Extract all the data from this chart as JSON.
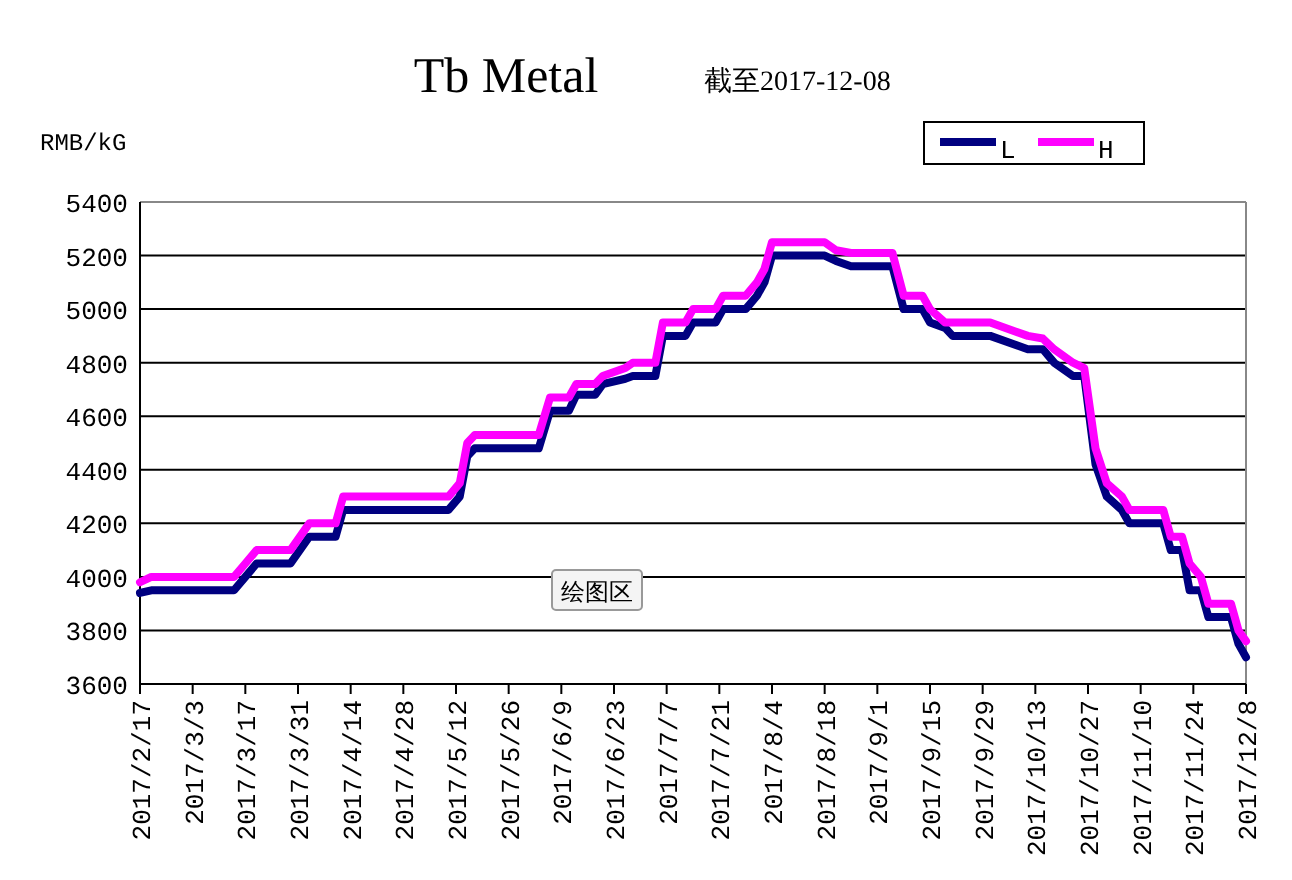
{
  "chart_data": {
    "type": "line",
    "title": "Tb Metal",
    "subtitle": "截至2017-12-08",
    "ylabel": "RMB/kG",
    "annotations": [
      "绘图区"
    ],
    "x": [
      "2017-02-17",
      "2017-02-20",
      "2017-03-14",
      "2017-03-17",
      "2017-03-20",
      "2017-03-29",
      "2017-04-03",
      "2017-04-10",
      "2017-04-12",
      "2017-05-10",
      "2017-05-13",
      "2017-05-15",
      "2017-05-17",
      "2017-06-03",
      "2017-06-06",
      "2017-06-11",
      "2017-06-13",
      "2017-06-18",
      "2017-06-20",
      "2017-06-26",
      "2017-06-28",
      "2017-07-04",
      "2017-07-06",
      "2017-07-12",
      "2017-07-14",
      "2017-07-20",
      "2017-07-22",
      "2017-07-28",
      "2017-07-31",
      "2017-08-02",
      "2017-08-04",
      "2017-08-18",
      "2017-08-21",
      "2017-08-25",
      "2017-09-05",
      "2017-09-08",
      "2017-09-13",
      "2017-09-15",
      "2017-09-19",
      "2017-09-21",
      "2017-10-01",
      "2017-10-11",
      "2017-10-15",
      "2017-10-18",
      "2017-10-23",
      "2017-10-26",
      "2017-10-29",
      "2017-11-01",
      "2017-11-05",
      "2017-11-07",
      "2017-11-16",
      "2017-11-18",
      "2017-11-21",
      "2017-11-23",
      "2017-11-26",
      "2017-11-28",
      "2017-12-04",
      "2017-12-06",
      "2017-12-08"
    ],
    "series": [
      {
        "name": "L",
        "color": "#000080",
        "values": [
          3940,
          3950,
          3950,
          4000,
          4050,
          4050,
          4150,
          4150,
          4250,
          4250,
          4300,
          4450,
          4480,
          4480,
          4620,
          4620,
          4680,
          4680,
          4720,
          4740,
          4750,
          4750,
          4900,
          4900,
          4950,
          4950,
          5000,
          5000,
          5050,
          5100,
          5200,
          5200,
          5180,
          5160,
          5160,
          5000,
          5000,
          4950,
          4930,
          4900,
          4900,
          4850,
          4850,
          4800,
          4750,
          4750,
          4420,
          4300,
          4250,
          4200,
          4200,
          4100,
          4100,
          3950,
          3950,
          3850,
          3850,
          3750,
          3700
        ]
      },
      {
        "name": "H",
        "color": "#ff00ff",
        "values": [
          3980,
          4000,
          4000,
          4050,
          4100,
          4100,
          4200,
          4200,
          4300,
          4300,
          4350,
          4500,
          4530,
          4530,
          4670,
          4670,
          4720,
          4720,
          4750,
          4780,
          4800,
          4800,
          4950,
          4950,
          5000,
          5000,
          5050,
          5050,
          5100,
          5150,
          5250,
          5250,
          5220,
          5210,
          5210,
          5050,
          5050,
          5000,
          4950,
          4950,
          4950,
          4900,
          4890,
          4850,
          4800,
          4780,
          4480,
          4350,
          4300,
          4250,
          4250,
          4150,
          4150,
          4050,
          4000,
          3900,
          3900,
          3800,
          3760
        ]
      }
    ],
    "xlim": [
      "2017-02-17",
      "2017-12-08"
    ],
    "xticks": [
      {
        "value": "2017-02-17",
        "label": "2017/2/17"
      },
      {
        "value": "2017-03-03",
        "label": "2017/3/3"
      },
      {
        "value": "2017-03-17",
        "label": "2017/3/17"
      },
      {
        "value": "2017-03-31",
        "label": "2017/3/31"
      },
      {
        "value": "2017-04-14",
        "label": "2017/4/14"
      },
      {
        "value": "2017-04-28",
        "label": "2017/4/28"
      },
      {
        "value": "2017-05-12",
        "label": "2017/5/12"
      },
      {
        "value": "2017-05-26",
        "label": "2017/5/26"
      },
      {
        "value": "2017-06-09",
        "label": "2017/6/9"
      },
      {
        "value": "2017-06-23",
        "label": "2017/6/23"
      },
      {
        "value": "2017-07-07",
        "label": "2017/7/7"
      },
      {
        "value": "2017-07-21",
        "label": "2017/7/21"
      },
      {
        "value": "2017-08-04",
        "label": "2017/8/4"
      },
      {
        "value": "2017-08-18",
        "label": "2017/8/18"
      },
      {
        "value": "2017-09-01",
        "label": "2017/9/1"
      },
      {
        "value": "2017-09-15",
        "label": "2017/9/15"
      },
      {
        "value": "2017-09-29",
        "label": "2017/9/29"
      },
      {
        "value": "2017-10-13",
        "label": "2017/10/13"
      },
      {
        "value": "2017-10-27",
        "label": "2017/10/27"
      },
      {
        "value": "2017-11-10",
        "label": "2017/11/10"
      },
      {
        "value": "2017-11-24",
        "label": "2017/11/24"
      },
      {
        "value": "2017-12-08",
        "label": "2017/12/8"
      }
    ],
    "ylim": [
      3600,
      5400
    ],
    "yticks": [
      3600,
      3800,
      4000,
      4200,
      4400,
      4600,
      4800,
      5000,
      5200,
      5400
    ],
    "grid": "y",
    "legend": "top right",
    "marker": "none",
    "line_style": "solid"
  }
}
